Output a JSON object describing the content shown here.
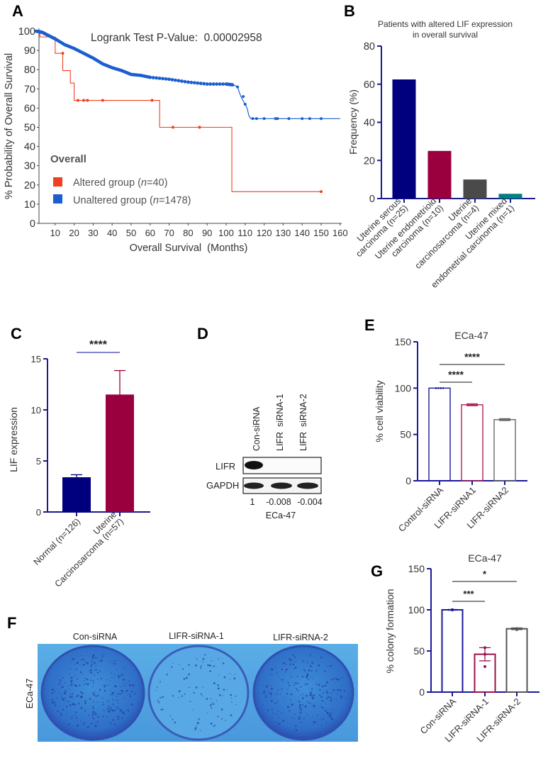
{
  "panels": {
    "a": "A",
    "b": "B",
    "c": "C",
    "d": "D",
    "e": "E",
    "f": "F",
    "g": "G"
  },
  "chart_data": [
    {
      "id": "A",
      "type": "line",
      "title": "Logrank Test P-Value:  0.00002958",
      "xlabel": "Overall Survival  (Months)",
      "ylabel": "% Probability of Overall Survival",
      "xlim": [
        0,
        160
      ],
      "ylim": [
        0,
        100
      ],
      "xticks": [
        10,
        20,
        30,
        40,
        50,
        60,
        70,
        80,
        90,
        100,
        110,
        120,
        130,
        140,
        150,
        160
      ],
      "yticks": [
        0,
        10,
        20,
        30,
        40,
        50,
        60,
        70,
        80,
        90,
        100
      ],
      "legend_title": "Overall",
      "legend_placement": "bottom-left",
      "series": [
        {
          "name": "Altered group",
          "n_label": "n",
          "n_value": "=40",
          "color": "#f04020",
          "step": true,
          "x": [
            0,
            2,
            10,
            14,
            18,
            20,
            65,
            103,
            150
          ],
          "y": [
            100,
            97,
            88.5,
            79.5,
            73,
            64,
            50,
            16.5,
            16.5
          ],
          "censored_x": [
            14,
            22,
            25,
            27,
            35,
            61,
            72,
            86,
            150
          ],
          "censored_y": [
            88.5,
            64,
            64,
            64,
            64,
            64,
            50,
            50,
            16.5
          ]
        },
        {
          "name": "Unaltered group",
          "n_label": "n",
          "n_value": "=1478",
          "color": "#1a5fd0",
          "step": false,
          "x": [
            0,
            3,
            6,
            10,
            15,
            20,
            25,
            30,
            35,
            40,
            45,
            50,
            55,
            60,
            70,
            80,
            90,
            100,
            104,
            106,
            107,
            108,
            110,
            111,
            112,
            113,
            160
          ],
          "y": [
            100,
            99.5,
            98,
            96,
            93,
            91,
            88.5,
            86,
            83,
            81,
            79.5,
            77.5,
            77,
            76,
            75,
            73.5,
            72.5,
            72.5,
            72,
            71,
            68,
            65.5,
            62,
            60,
            56,
            54.5,
            54.5
          ],
          "censored_x": [
            106,
            109,
            110,
            114,
            116,
            120,
            126,
            127,
            133,
            140,
            144,
            150
          ],
          "censored_y": [
            71,
            66,
            62,
            54.5,
            54.5,
            54.5,
            54.5,
            54.5,
            54.5,
            54.5,
            54.5,
            54.5
          ]
        }
      ]
    },
    {
      "id": "B",
      "type": "bar",
      "title_lines": [
        "Patients with altered LIF expression",
        "in overall survival"
      ],
      "ylabel": "Frequency (%)",
      "ylim": [
        0,
        80
      ],
      "yticks": [
        0,
        20,
        40,
        60,
        80
      ],
      "categories": [
        [
          "Uterine serous",
          "carcinoma (n=25)"
        ],
        [
          "Uterine endometrioid",
          "carcinoma (n=10)"
        ],
        [
          "Uterine",
          "carcinosarcoma (n=4)"
        ],
        [
          "Uterine mixed",
          "endometrial carcinoma (n=1)"
        ]
      ],
      "values": [
        62.5,
        25,
        10,
        2.5
      ],
      "colors": [
        "#00007f",
        "#99003d",
        "#4a4a4a",
        "#008080"
      ]
    },
    {
      "id": "C",
      "type": "bar",
      "ylabel": "LIF expression",
      "ylim": [
        0,
        15
      ],
      "yticks": [
        0,
        5,
        10,
        15
      ],
      "categories": [
        [
          "Normal (n=126)"
        ],
        [
          "Uterine",
          "Carcinosarcoma (n=57)"
        ]
      ],
      "values": [
        3.4,
        11.5
      ],
      "errors": [
        0.25,
        2.35
      ],
      "colors": [
        "#00007f",
        "#99003d"
      ],
      "significance": [
        {
          "from": 0,
          "to": 1,
          "label": "****"
        }
      ]
    },
    {
      "id": "E",
      "type": "bar",
      "title": "ECa-47",
      "ylabel": "% cell viability",
      "ylim": [
        0,
        150
      ],
      "yticks": [
        0,
        50,
        100,
        150
      ],
      "categories": [
        [
          "Control-siRNA"
        ],
        [
          "LIFR-siRNA1"
        ],
        [
          "LIFR-siRNA2"
        ]
      ],
      "values": [
        100,
        82,
        66
      ],
      "errors": [
        0,
        1,
        1
      ],
      "colors": [
        "#1a1a9a",
        "#b0205a",
        "#666666"
      ],
      "significance": [
        {
          "from": 0,
          "to": 2,
          "label": "****"
        },
        {
          "from": 0,
          "to": 1,
          "label": "****"
        }
      ]
    },
    {
      "id": "G",
      "type": "bar",
      "title": "ECa-47",
      "ylabel": "% colony formation",
      "ylim": [
        0,
        150
      ],
      "yticks": [
        0,
        50,
        100,
        150
      ],
      "categories": [
        [
          "Con-siRNA"
        ],
        [
          "LIFR-siRNA-1"
        ],
        [
          "LIFR-siRNA-2"
        ]
      ],
      "values": [
        100,
        46,
        77
      ],
      "errors": [
        0,
        8,
        1
      ],
      "points": [
        [
          100,
          100,
          100
        ],
        [
          54,
          46,
          31
        ],
        [
          77,
          77,
          76
        ]
      ],
      "colors": [
        "#1a1a9a",
        "#a0104a",
        "#555555"
      ],
      "significance": [
        {
          "from": 0,
          "to": 2,
          "label": "*"
        },
        {
          "from": 0,
          "to": 1,
          "label": "***"
        }
      ]
    }
  ],
  "western_blot": {
    "lanes": [
      "Con-siRNA",
      "LIFR  siRNA-1",
      "LIFR  siRNA-2"
    ],
    "rows": [
      "LIFR",
      "GAPDH"
    ],
    "quant": [
      "1",
      "-0.008",
      "-0.004"
    ],
    "cell_line": "ECa-47"
  },
  "colony_plate": {
    "wells": [
      "Con-siRNA",
      "LIFR-siRNA-1",
      "LIFR-siRNA-2"
    ],
    "row_label": "ECa-47"
  }
}
